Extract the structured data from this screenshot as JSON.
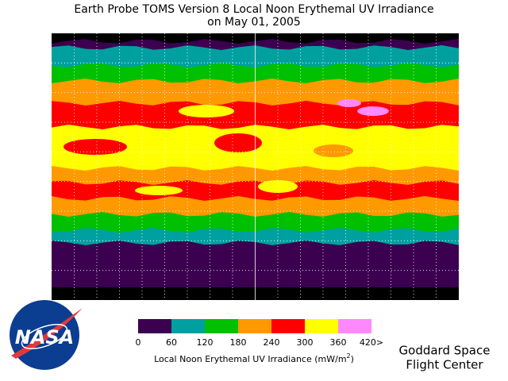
{
  "header": {
    "title": [
      "Earth Probe TOMS Version 8 Local Noon Erythemal UV Irradiance",
      "on May 01, 2005"
    ]
  },
  "legend": {
    "colors": [
      "#3c0050",
      "#00a0a0",
      "#00c000",
      "#ff9900",
      "#ff0000",
      "#ffff00",
      "#ff88ff"
    ],
    "ticks": [
      "0",
      "60",
      "120",
      "180",
      "240",
      "300",
      "360",
      "420>"
    ],
    "label": [
      "Local Noon Erythemal UV Irradiance (mW/m",
      "2",
      ")"
    ]
  },
  "logo": {
    "text": "NASA"
  },
  "credit": [
    "Goddard Space",
    "Flight Center"
  ]
}
